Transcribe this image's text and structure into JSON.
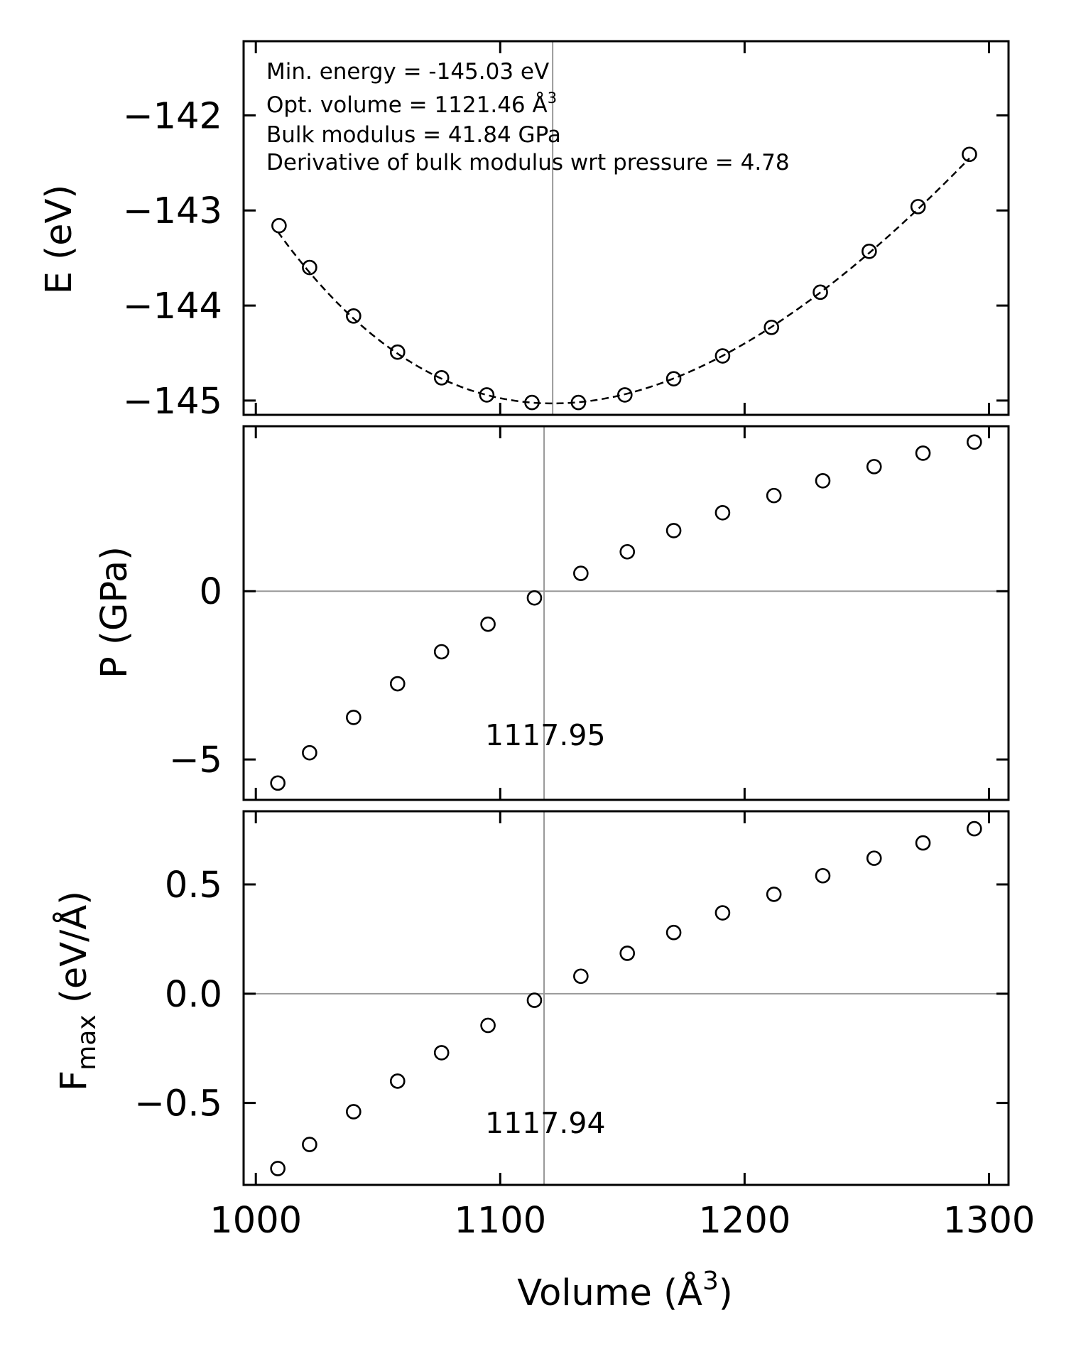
{
  "chart_data": [
    {
      "type": "scatter",
      "panel": "energy",
      "ylabel": "E (eV)",
      "xlim": [
        995,
        1308
      ],
      "ylim": [
        -145.15,
        -141.22
      ],
      "yticks": [
        -145,
        -144,
        -143,
        -142
      ],
      "ytick_labels": [
        "−145",
        "−144",
        "−143",
        "−142"
      ],
      "xticks": [
        1000,
        1100,
        1200,
        1300
      ],
      "vline_x": 1121.46,
      "annotations": [
        "Min. energy = -145.03 eV",
        "Opt. volume = 1121.46 Å",
        "Bulk modulus = 41.84 GPa",
        "Derivative of bulk modulus wrt pressure = 4.78"
      ],
      "annotation_superscript": "3",
      "fit": {
        "style": "dashed",
        "E0": -145.03,
        "V0": 1121.46,
        "B_GPa": 41.84,
        "Bp": 4.78,
        "x_range": [
          1009,
          1292
        ]
      },
      "series": [
        {
          "name": "E",
          "x": [
            1009.5,
            1022.0,
            1040.0,
            1058.0,
            1076.0,
            1094.5,
            1113.0,
            1132.0,
            1151.0,
            1171.0,
            1191.0,
            1211.0,
            1231.0,
            1251.0,
            1271.0,
            1292.0
          ],
          "y": [
            -143.16,
            -143.6,
            -144.11,
            -144.49,
            -144.76,
            -144.94,
            -145.02,
            -145.02,
            -144.94,
            -144.77,
            -144.53,
            -144.23,
            -143.86,
            -143.43,
            -142.96,
            -142.41
          ]
        }
      ]
    },
    {
      "type": "scatter",
      "panel": "pressure",
      "ylabel": "P (GPa)",
      "xlim": [
        995,
        1308
      ],
      "ylim": [
        -6.2,
        4.9
      ],
      "yticks": [
        -5,
        0
      ],
      "ytick_labels": [
        "−5",
        "0"
      ],
      "xticks": [
        1000,
        1100,
        1200,
        1300
      ],
      "hline_y": 0,
      "vline_x": 1117.95,
      "vline_label": "1117.95",
      "series": [
        {
          "name": "P",
          "x": [
            1009,
            1022,
            1040,
            1058,
            1076,
            1095,
            1114,
            1133,
            1152,
            1171,
            1191,
            1212,
            1232,
            1253,
            1273,
            1294
          ],
          "y": [
            -5.7,
            -4.8,
            -3.75,
            -2.75,
            -1.8,
            -0.98,
            -0.2,
            0.53,
            1.17,
            1.8,
            2.33,
            2.84,
            3.28,
            3.7,
            4.1,
            4.43
          ]
        }
      ]
    },
    {
      "type": "scatter",
      "panel": "force",
      "ylabel": "F",
      "ylabel_sub": "max",
      "ylabel_unit": " (eV/Å)",
      "xlabel": "Volume (Å",
      "xlabel_superscript": "3",
      "xlabel_close": ")",
      "xlim": [
        995,
        1308
      ],
      "ylim": [
        -0.875,
        0.835
      ],
      "yticks": [
        -0.5,
        0.0,
        0.5
      ],
      "ytick_labels": [
        "−0.5",
        "0.0",
        "0.5"
      ],
      "xticks": [
        1000,
        1100,
        1200,
        1300
      ],
      "xtick_labels": [
        "1000",
        "1100",
        "1200",
        "1300"
      ],
      "hline_y": 0,
      "vline_x": 1117.94,
      "vline_label": "1117.94",
      "series": [
        {
          "name": "Fmax",
          "x": [
            1009,
            1022,
            1040,
            1058,
            1076,
            1095,
            1114,
            1133,
            1152,
            1171,
            1191,
            1212,
            1232,
            1253,
            1273,
            1294
          ],
          "y": [
            -0.8,
            -0.69,
            -0.54,
            -0.4,
            -0.27,
            -0.145,
            -0.03,
            0.08,
            0.185,
            0.28,
            0.37,
            0.455,
            0.54,
            0.62,
            0.69,
            0.755
          ]
        }
      ]
    }
  ],
  "colors": {
    "marker": "#000000",
    "refline": "#999999",
    "frame": "#000000",
    "background": "#ffffff"
  }
}
